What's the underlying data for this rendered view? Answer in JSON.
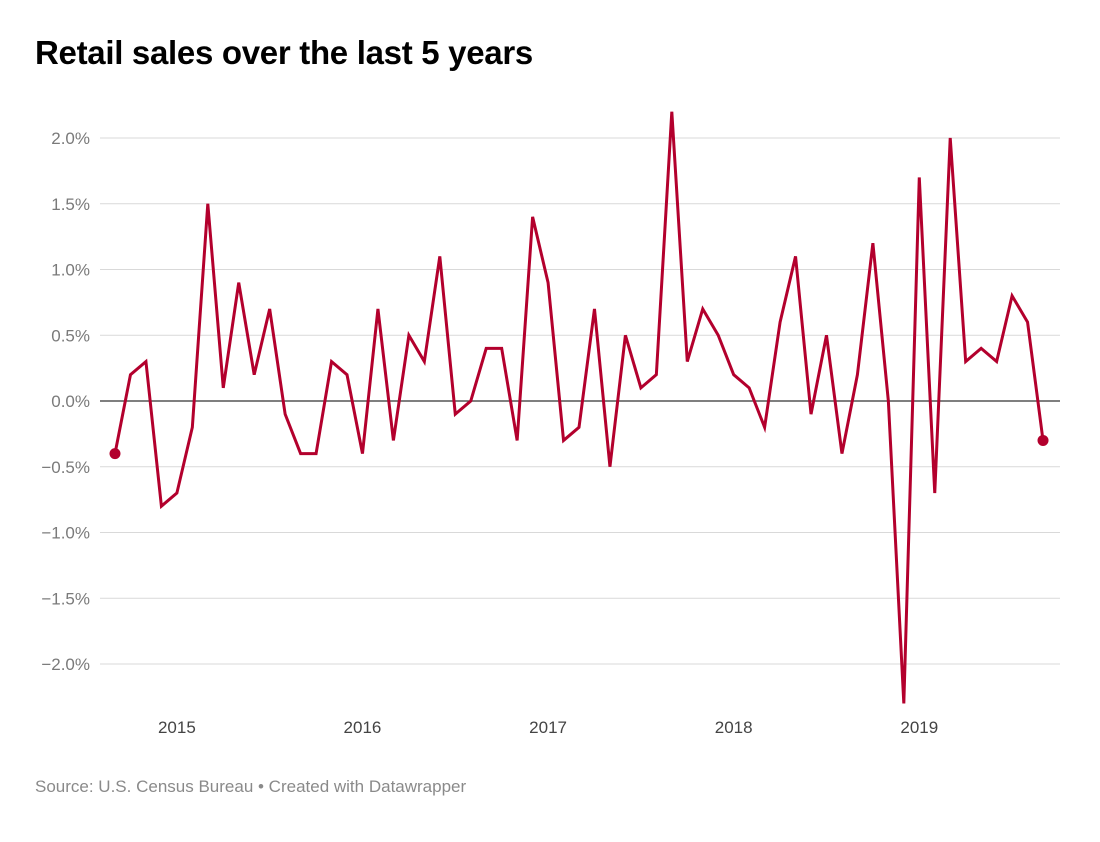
{
  "title": "Retail sales over the last 5 years",
  "source": "Source: U.S. Census Bureau • Created with Datawrapper",
  "colors": {
    "line": "#b3002d",
    "grid": "#d9d9d9",
    "zero": "#333333"
  },
  "chart_data": {
    "type": "line",
    "title": "Retail sales over the last 5 years",
    "xlabel": "",
    "ylabel": "",
    "ylim": [
      -2.3,
      2.2
    ],
    "grid": true,
    "yticks": [
      2.0,
      1.5,
      1.0,
      0.5,
      0.0,
      -0.5,
      -1.0,
      -1.5,
      -2.0
    ],
    "ytick_labels": [
      "2.0%",
      "1.5%",
      "1.0%",
      "0.5%",
      "0.0%",
      "−0.5%",
      "−1.0%",
      "−1.5%",
      "−2.0%"
    ],
    "xticks": [
      "2015-01",
      "2016-01",
      "2017-01",
      "2018-01",
      "2019-01"
    ],
    "xtick_labels": [
      "2015",
      "2016",
      "2017",
      "2018",
      "2019"
    ],
    "x": [
      "2014-09",
      "2014-10",
      "2014-11",
      "2014-12",
      "2015-01",
      "2015-02",
      "2015-03",
      "2015-04",
      "2015-05",
      "2015-06",
      "2015-07",
      "2015-08",
      "2015-09",
      "2015-10",
      "2015-11",
      "2015-12",
      "2016-01",
      "2016-02",
      "2016-03",
      "2016-04",
      "2016-05",
      "2016-06",
      "2016-07",
      "2016-08",
      "2016-09",
      "2016-10",
      "2016-11",
      "2016-12",
      "2017-01",
      "2017-02",
      "2017-03",
      "2017-04",
      "2017-05",
      "2017-06",
      "2017-07",
      "2017-08",
      "2017-09",
      "2017-10",
      "2017-11",
      "2017-12",
      "2018-01",
      "2018-02",
      "2018-03",
      "2018-04",
      "2018-05",
      "2018-06",
      "2018-07",
      "2018-08",
      "2018-09",
      "2018-10",
      "2018-11",
      "2018-12",
      "2019-01",
      "2019-02",
      "2019-03",
      "2019-04",
      "2019-05",
      "2019-06",
      "2019-07",
      "2019-08",
      "2019-09"
    ],
    "y": [
      -0.4,
      0.2,
      0.3,
      -0.8,
      -0.7,
      -0.2,
      1.5,
      0.1,
      0.9,
      0.2,
      0.7,
      -0.1,
      -0.4,
      -0.4,
      0.3,
      0.2,
      -0.4,
      0.7,
      -0.3,
      0.5,
      0.3,
      1.1,
      -0.1,
      0.0,
      0.4,
      0.4,
      -0.3,
      1.4,
      0.9,
      -0.3,
      -0.2,
      0.7,
      -0.5,
      0.5,
      0.1,
      0.2,
      2.2,
      0.3,
      0.7,
      0.5,
      0.2,
      0.1,
      -0.2,
      0.6,
      1.1,
      -0.1,
      0.5,
      -0.4,
      0.2,
      1.2,
      0.0,
      -2.3,
      1.7,
      -0.7,
      2.0,
      0.3,
      0.4,
      0.3,
      0.8,
      0.6,
      -0.3
    ],
    "endpoint_markers": true
  }
}
